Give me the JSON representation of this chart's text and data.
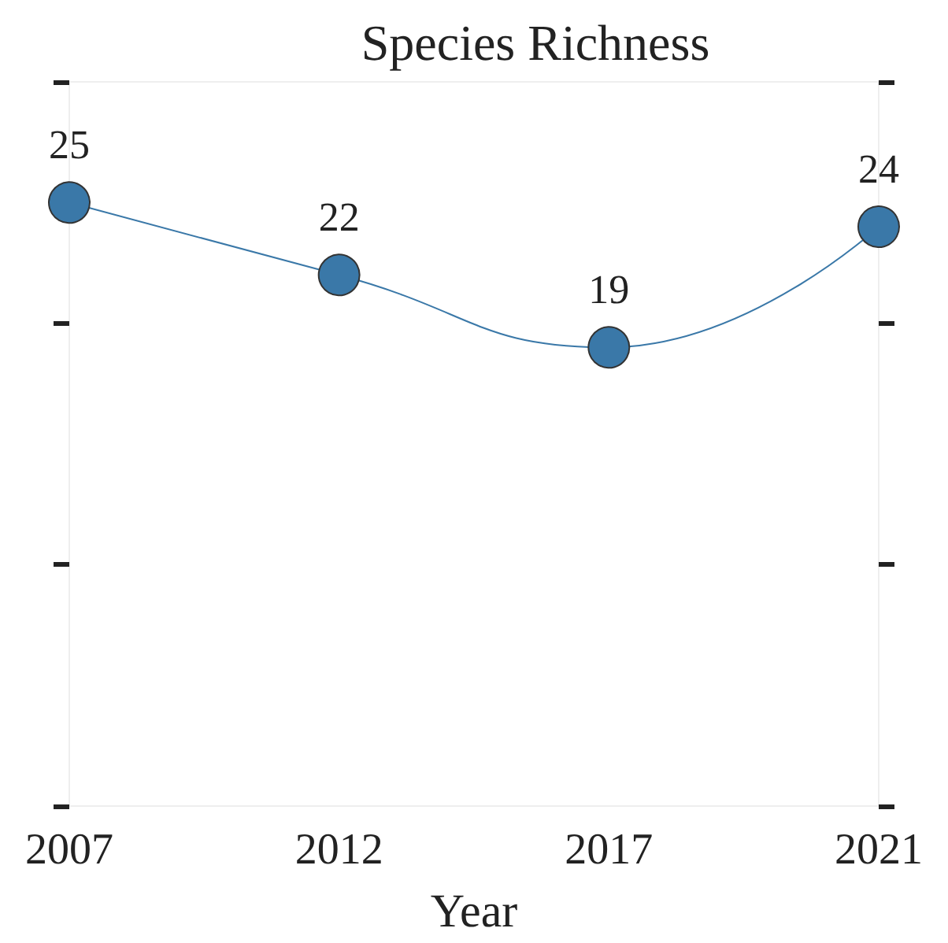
{
  "chart_data": {
    "type": "line",
    "title": "Species Richness",
    "xlabel": "Year",
    "categories": [
      "2007",
      "2012",
      "2017",
      "2021"
    ],
    "series": [
      {
        "color": "#3a78a8",
        "values": [
          25,
          22,
          19,
          24
        ]
      }
    ],
    "ylim": [
      0,
      30
    ],
    "yticks": [
      {
        "value": 0,
        "label": null
      },
      {
        "value": 10,
        "label": null
      },
      {
        "value": 20,
        "label": null
      },
      {
        "value": 30,
        "label": null
      }
    ],
    "tick_labels": "x",
    "data_labels": true,
    "marker": "circle",
    "line_style": "solid",
    "grid": false
  }
}
